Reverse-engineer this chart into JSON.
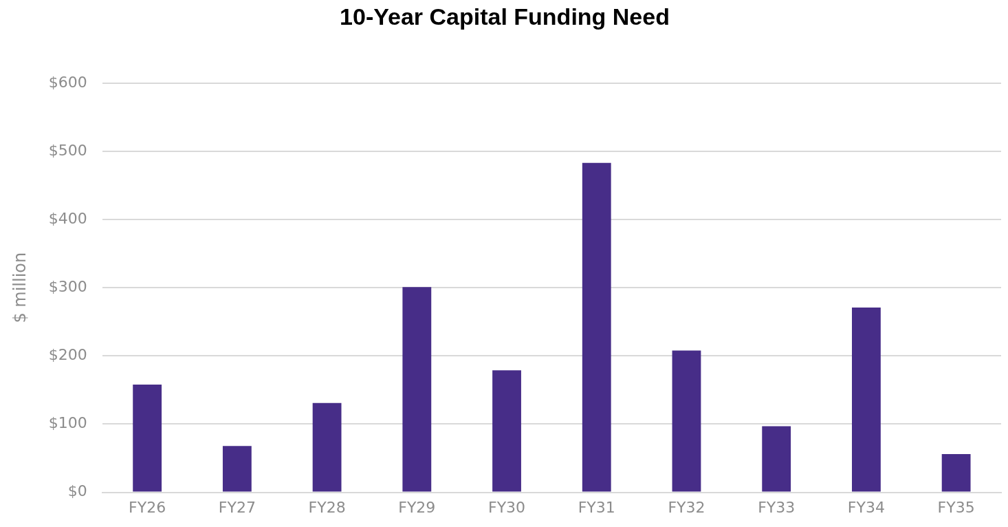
{
  "chart_data": {
    "type": "bar",
    "title": "10-Year Capital Funding Need",
    "ylabel": "$ million",
    "categories": [
      "FY26",
      "FY27",
      "FY28",
      "FY29",
      "FY30",
      "FY31",
      "FY32",
      "FY33",
      "FY34",
      "FY35"
    ],
    "values": [
      158,
      68,
      131,
      301,
      179,
      483,
      208,
      97,
      271,
      56
    ],
    "color": "#472d88",
    "ylim": [
      0,
      600
    ],
    "yticks": [
      {
        "value": 0,
        "label": "$0"
      },
      {
        "value": 100,
        "label": "$100"
      },
      {
        "value": 200,
        "label": "$200"
      },
      {
        "value": 300,
        "label": "$300"
      },
      {
        "value": 400,
        "label": "$400"
      },
      {
        "value": 500,
        "label": "$500"
      },
      {
        "value": 600,
        "label": "$600"
      }
    ],
    "grid": "y",
    "legend": false
  }
}
